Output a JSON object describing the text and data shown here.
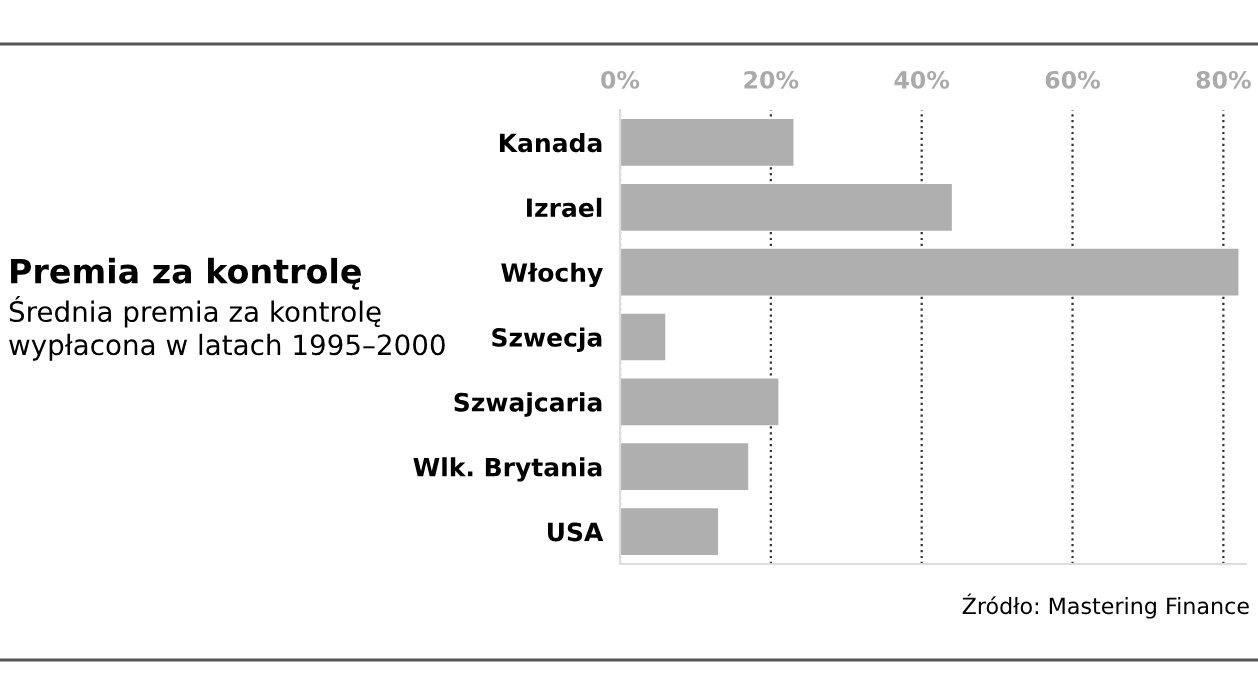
{
  "chart_data": {
    "type": "bar",
    "orientation": "horizontal",
    "title": "Premia za kontrolę",
    "subtitle": "Średnia premia za kontrolę wypłacona w latach 1995–2000",
    "categories": [
      "Kanada",
      "Izrael",
      "Włochy",
      "Szwecja",
      "Szwajcaria",
      "Wlk. Brytania",
      "USA"
    ],
    "values": [
      23,
      44,
      82,
      6,
      21,
      17,
      13
    ],
    "color": "#afafaf",
    "xlim": [
      0,
      83
    ],
    "xticks": [
      {
        "value": 0,
        "label": "0%"
      },
      {
        "value": 20,
        "label": "20%"
      },
      {
        "value": 40,
        "label": "40%"
      },
      {
        "value": 60,
        "label": "60%"
      },
      {
        "value": 80,
        "label": "80%"
      }
    ],
    "grid": "x",
    "annotations": [
      "Źródło: Mastering Finance"
    ]
  }
}
